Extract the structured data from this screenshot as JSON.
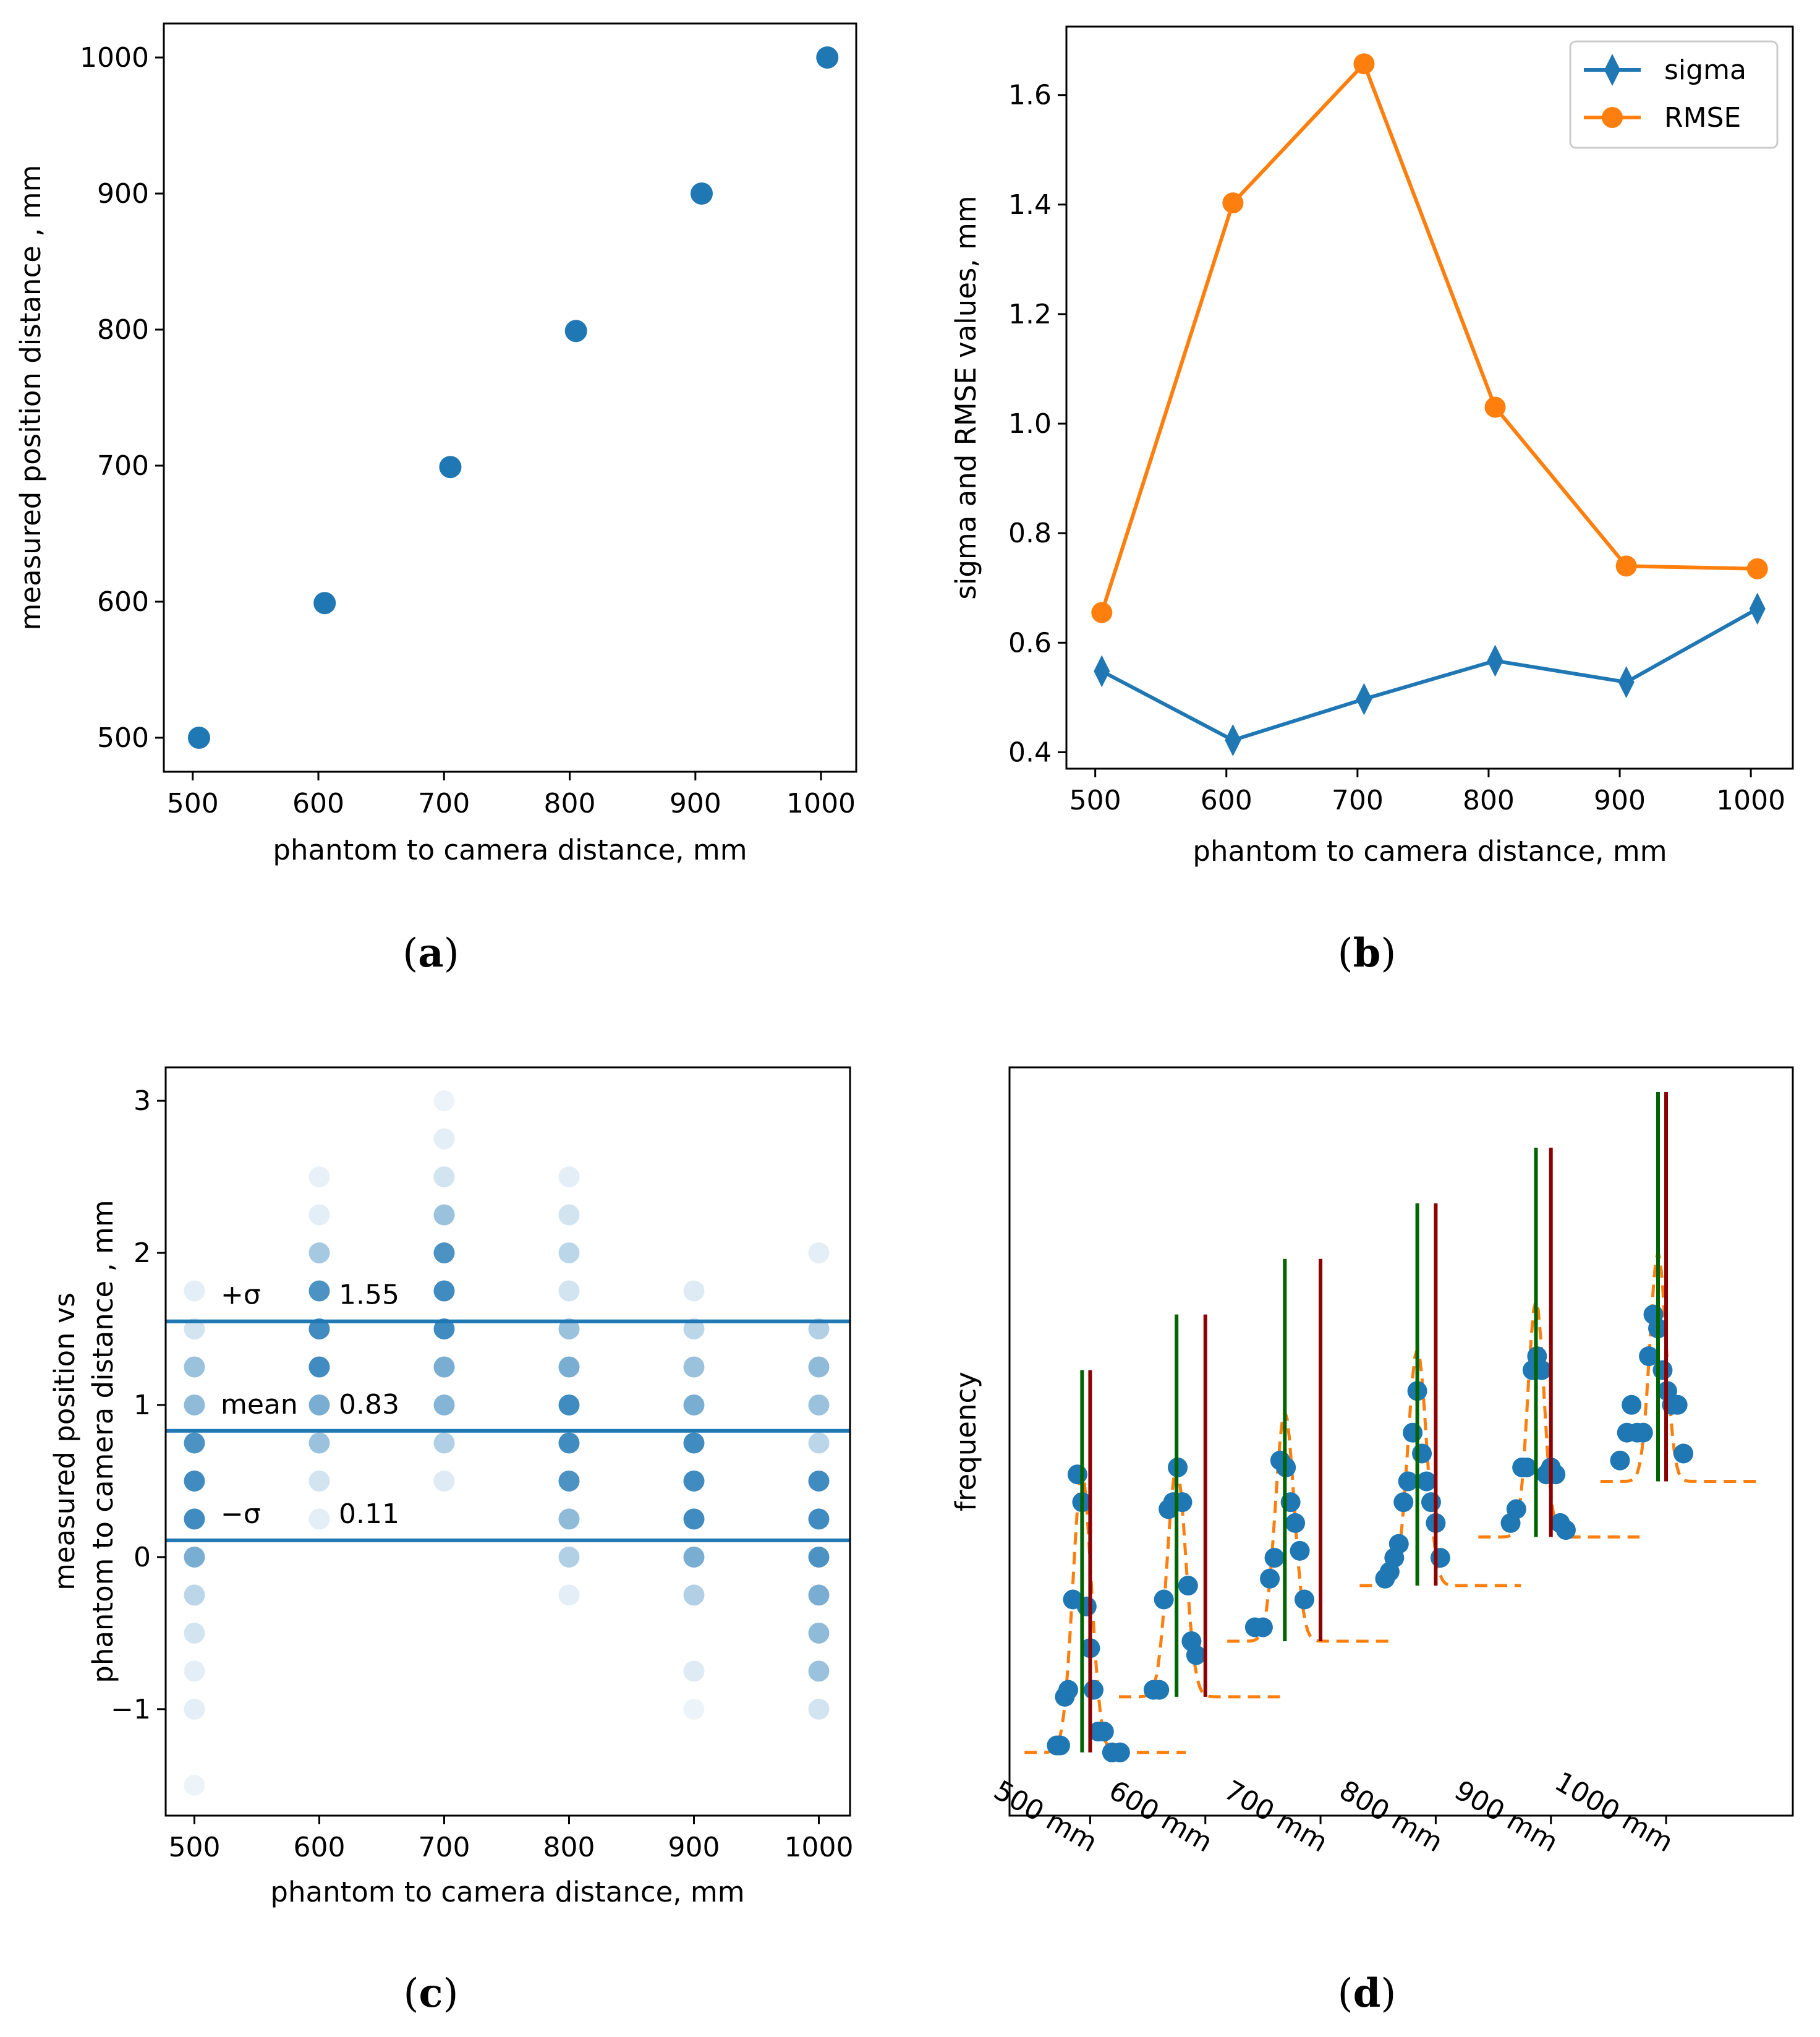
{
  "chart_data": [
    {
      "type": "scatter",
      "id": "a",
      "caption_letter": "a",
      "xlabel": "phantom to camera distance, mm",
      "ylabel": "measured position distance , mm",
      "xlim": [
        477,
        1028
      ],
      "ylim": [
        475,
        1025
      ],
      "xticks": [
        500,
        600,
        700,
        800,
        900,
        1000
      ],
      "yticks": [
        500,
        600,
        700,
        800,
        900,
        1000
      ],
      "series": [
        {
          "name": "measurements",
          "color": "#1f77b4",
          "x": [
            505,
            605,
            705,
            805,
            905,
            1005
          ],
          "y": [
            500,
            599,
            699,
            799,
            900,
            1000
          ]
        }
      ]
    },
    {
      "type": "line",
      "id": "b",
      "caption_letter": "b",
      "xlabel": "phantom to camera distance, mm",
      "ylabel": "sigma and RMSE values, mm",
      "xlim": [
        478,
        1032
      ],
      "ylim": [
        0.37,
        1.725
      ],
      "xticks": [
        500,
        600,
        700,
        800,
        900,
        1000
      ],
      "yticks": [
        0.4,
        0.6,
        0.8,
        1.0,
        1.2,
        1.4,
        1.6
      ],
      "ytick_labels": [
        "0.4",
        "0.6",
        "0.8",
        "1.0",
        "1.2",
        "1.4",
        "1.6"
      ],
      "legend_position": "top-right",
      "series": [
        {
          "name": "sigma",
          "color": "#1f77b4",
          "marker": "thin_diamond",
          "x": [
            505,
            605,
            705,
            805,
            905,
            1005
          ],
          "values": [
            0.548,
            0.422,
            0.497,
            0.567,
            0.528,
            0.662
          ]
        },
        {
          "name": "RMSE",
          "color": "#ff7f0e",
          "marker": "circle",
          "x": [
            505,
            605,
            705,
            805,
            905,
            1005
          ],
          "values": [
            0.655,
            1.403,
            1.657,
            1.03,
            0.74,
            0.735
          ]
        }
      ]
    },
    {
      "type": "scatter",
      "id": "c",
      "caption_letter": "c",
      "xlabel": "phantom to camera distance, mm",
      "ylabel_lines": [
        "measured position vs",
        "phantom to camera distance , mm"
      ],
      "xlim": [
        477,
        1025
      ],
      "ylim": [
        -1.7,
        3.22
      ],
      "xticks": [
        500,
        600,
        700,
        800,
        900,
        1000
      ],
      "yticks": [
        -1,
        0,
        1,
        2,
        3
      ],
      "ytick_labels": [
        "−1",
        "0",
        "1",
        "2",
        "3"
      ],
      "hlines": [
        {
          "label": "+σ",
          "value_text": "1.55",
          "y": 1.55
        },
        {
          "label": "mean",
          "value_text": "0.83",
          "y": 0.83
        },
        {
          "label": "−σ",
          "value_text": "0.11",
          "y": 0.11
        }
      ],
      "point_color": "#1f77b4",
      "groups": [
        {
          "x": 500,
          "points": [
            [
              1.75,
              0.12
            ],
            [
              1.5,
              0.2
            ],
            [
              1.25,
              0.45
            ],
            [
              1.0,
              0.5
            ],
            [
              0.75,
              0.8
            ],
            [
              0.5,
              0.85
            ],
            [
              0.25,
              0.85
            ],
            [
              0.0,
              0.6
            ],
            [
              -0.25,
              0.3
            ],
            [
              -0.5,
              0.2
            ],
            [
              -0.75,
              0.12
            ],
            [
              -1.0,
              0.12
            ],
            [
              -1.5,
              0.08
            ]
          ]
        },
        {
          "x": 600,
          "points": [
            [
              2.5,
              0.1
            ],
            [
              2.25,
              0.12
            ],
            [
              2.0,
              0.4
            ],
            [
              1.75,
              0.8
            ],
            [
              1.5,
              0.85
            ],
            [
              1.25,
              0.85
            ],
            [
              1.0,
              0.6
            ],
            [
              0.75,
              0.45
            ],
            [
              0.5,
              0.2
            ],
            [
              0.25,
              0.12
            ]
          ]
        },
        {
          "x": 700,
          "points": [
            [
              3.0,
              0.08
            ],
            [
              2.75,
              0.12
            ],
            [
              2.5,
              0.2
            ],
            [
              2.25,
              0.45
            ],
            [
              2.0,
              0.8
            ],
            [
              1.75,
              0.85
            ],
            [
              1.5,
              0.85
            ],
            [
              1.25,
              0.6
            ],
            [
              1.0,
              0.55
            ],
            [
              0.75,
              0.35
            ],
            [
              0.5,
              0.15
            ]
          ]
        },
        {
          "x": 800,
          "points": [
            [
              2.5,
              0.12
            ],
            [
              2.25,
              0.2
            ],
            [
              2.0,
              0.3
            ],
            [
              1.75,
              0.2
            ],
            [
              1.5,
              0.45
            ],
            [
              1.25,
              0.6
            ],
            [
              1.0,
              0.85
            ],
            [
              0.75,
              0.85
            ],
            [
              0.5,
              0.8
            ],
            [
              0.25,
              0.5
            ],
            [
              0.0,
              0.35
            ],
            [
              -0.25,
              0.12
            ]
          ]
        },
        {
          "x": 900,
          "points": [
            [
              1.75,
              0.15
            ],
            [
              1.5,
              0.3
            ],
            [
              1.25,
              0.45
            ],
            [
              1.0,
              0.6
            ],
            [
              0.75,
              0.85
            ],
            [
              0.5,
              0.85
            ],
            [
              0.25,
              0.85
            ],
            [
              0.0,
              0.6
            ],
            [
              -0.25,
              0.35
            ],
            [
              -0.75,
              0.15
            ],
            [
              -1.0,
              0.08
            ]
          ]
        },
        {
          "x": 1000,
          "points": [
            [
              2.0,
              0.12
            ],
            [
              1.5,
              0.35
            ],
            [
              1.25,
              0.5
            ],
            [
              1.0,
              0.45
            ],
            [
              0.75,
              0.3
            ],
            [
              0.5,
              0.85
            ],
            [
              0.25,
              0.85
            ],
            [
              0.0,
              0.8
            ],
            [
              -0.25,
              0.6
            ],
            [
              -0.5,
              0.5
            ],
            [
              -0.75,
              0.45
            ],
            [
              -1.0,
              0.2
            ]
          ]
        }
      ]
    },
    {
      "type": "line",
      "id": "d",
      "caption_letter": "d",
      "ylabel": "frequency",
      "xlim": [
        430,
        1110
      ],
      "ylim": [
        0,
        100
      ],
      "xticks": [
        500,
        600,
        700,
        800,
        900,
        1000
      ],
      "xtick_labels": [
        "500 mm",
        "600 mm",
        "700 mm",
        "800 mm",
        "900 mm",
        "1000 mm"
      ],
      "colors": {
        "points": "#1f77b4",
        "fit": "#ff7f0e",
        "mean_line": "#006400",
        "true_line": "#8b0000"
      },
      "groups": [
        {
          "true": 500,
          "mean": 493,
          "base": 5,
          "peak": 40,
          "sigma": 8,
          "vtop": 60,
          "points": [
            [
              471,
              6
            ],
            [
              474,
              6
            ],
            [
              478,
              13
            ],
            [
              481,
              14
            ],
            [
              485,
              27
            ],
            [
              489,
              45
            ],
            [
              493,
              41
            ],
            [
              497,
              26
            ],
            [
              500,
              20
            ],
            [
              503,
              14
            ],
            [
              507,
              8
            ],
            [
              512,
              8
            ],
            [
              519,
              5
            ],
            [
              526,
              5
            ]
          ]
        },
        {
          "true": 600,
          "mean": 575,
          "base": 13,
          "peak": 33,
          "sigma": 8,
          "vtop": 68,
          "points": [
            [
              555,
              14
            ],
            [
              560,
              14
            ],
            [
              564,
              27
            ],
            [
              568,
              40
            ],
            [
              572,
              41
            ],
            [
              576,
              46
            ],
            [
              580,
              41
            ],
            [
              585,
              29
            ],
            [
              588,
              21
            ],
            [
              592,
              19
            ]
          ]
        },
        {
          "true": 700,
          "mean": 669,
          "base": 21,
          "peak": 33,
          "sigma": 8,
          "vtop": 76,
          "points": [
            [
              643,
              23
            ],
            [
              650,
              23
            ],
            [
              656,
              30
            ],
            [
              660,
              33
            ],
            [
              665,
              47
            ],
            [
              670,
              46
            ],
            [
              674,
              41
            ],
            [
              678,
              38
            ],
            [
              682,
              34
            ],
            [
              686,
              27
            ]
          ]
        },
        {
          "true": 800,
          "mean": 784,
          "base": 29,
          "peak": 34,
          "sigma": 8,
          "vtop": 84,
          "points": [
            [
              756,
              30
            ],
            [
              760,
              31
            ],
            [
              764,
              33
            ],
            [
              768,
              35
            ],
            [
              772,
              41
            ],
            [
              776,
              44
            ],
            [
              780,
              51
            ],
            [
              784,
              57
            ],
            [
              788,
              48
            ],
            [
              792,
              44
            ],
            [
              796,
              41
            ],
            [
              800,
              38
            ],
            [
              804,
              33
            ]
          ]
        },
        {
          "true": 900,
          "mean": 887,
          "base": 36,
          "peak": 34,
          "sigma": 7,
          "vtop": 92,
          "points": [
            [
              865,
              38
            ],
            [
              870,
              40
            ],
            [
              875,
              46
            ],
            [
              879,
              46
            ],
            [
              884,
              60
            ],
            [
              888,
              62
            ],
            [
              892,
              60
            ],
            [
              896,
              45
            ],
            [
              900,
              46
            ],
            [
              904,
              45
            ],
            [
              908,
              38
            ],
            [
              913,
              37
            ]
          ]
        },
        {
          "true": 1000,
          "mean": 993,
          "base": 44,
          "peak": 33,
          "sigma": 7,
          "vtop": 100,
          "points": [
            [
              960,
              47
            ],
            [
              966,
              51
            ],
            [
              970,
              55
            ],
            [
              975,
              51
            ],
            [
              980,
              51
            ],
            [
              985,
              62
            ],
            [
              989,
              68
            ],
            [
              993,
              66
            ],
            [
              997,
              60
            ],
            [
              1001,
              57
            ],
            [
              1005,
              55
            ],
            [
              1010,
              55
            ],
            [
              1015,
              48
            ]
          ]
        }
      ]
    }
  ]
}
